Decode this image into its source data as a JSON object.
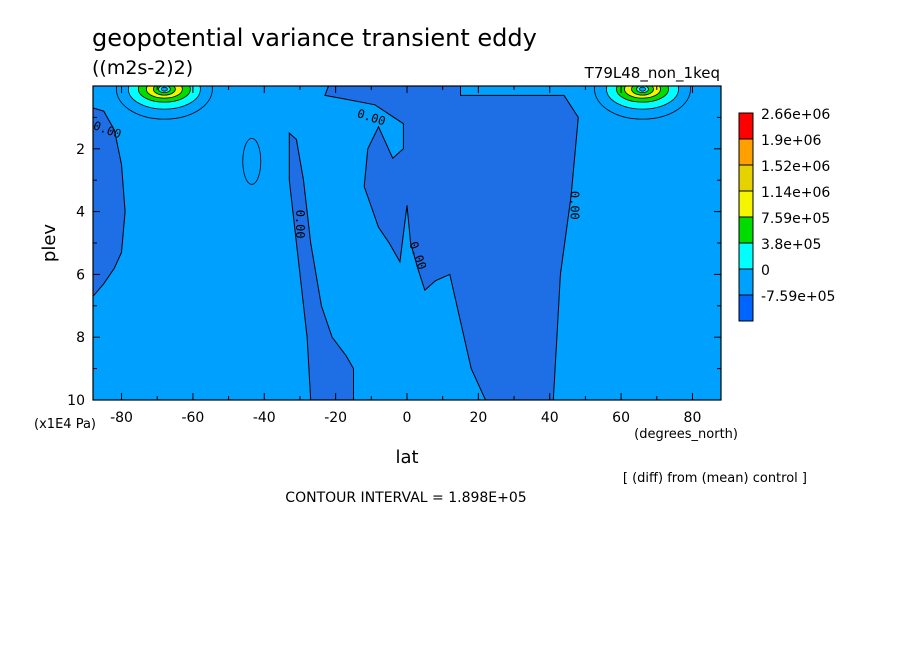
{
  "chart_data": {
    "type": "contour",
    "title": "geopotential variance transient eddy",
    "units": "((m2s-2)2)",
    "run_label": "T79L48_non_1keq",
    "xlabel": "lat",
    "x_units": "(degrees_north)",
    "ylabel": "plev",
    "y_units": "(x1E4 Pa)",
    "xlim": [
      -88,
      88
    ],
    "ylim": [
      10,
      0
    ],
    "x_ticks": [
      -80,
      -60,
      -40,
      -20,
      0,
      20,
      40,
      60,
      80
    ],
    "x_tick_labels": [
      "-80",
      "-60",
      "-40",
      "-20",
      "0",
      "20",
      "40",
      "60",
      "80"
    ],
    "y_ticks": [
      2,
      4,
      6,
      8,
      10
    ],
    "y_tick_labels": [
      "2",
      "4",
      "6",
      "8",
      "10"
    ],
    "contour_labels": [
      "0.00",
      "0.00",
      "0.00",
      "0.00",
      "0.00"
    ],
    "contour_interval_text": "CONTOUR INTERVAL = 1.898E+05",
    "diff_note": "[ (diff) from (mean) control ]",
    "legend": {
      "labels": [
        "2.66e+06",
        "1.9e+06",
        "1.52e+06",
        "1.14e+06",
        "7.59e+05",
        "3.8e+05",
        "0",
        "-7.59e+05"
      ],
      "colors": [
        "#ff0000",
        "#ffa000",
        "#e6d200",
        "#f5f500",
        "#00dc00",
        "#00ffff",
        "#00a0ff",
        "#0064ff"
      ]
    },
    "regions": {
      "negative_color": "#1e6ee6",
      "background_color": "#00a0ff",
      "south_pole_negative": [
        [
          -88,
          0.7
        ],
        [
          -85,
          0.8
        ],
        [
          -82,
          1.4
        ],
        [
          -80,
          2.5
        ],
        [
          -79,
          4.0
        ],
        [
          -80,
          5.3
        ],
        [
          -82,
          5.8
        ],
        [
          -85,
          6.3
        ],
        [
          -88,
          6.7
        ]
      ],
      "sh_midlat_negative": [
        [
          -33,
          1.5
        ],
        [
          -31,
          1.7
        ],
        [
          -29,
          3.0
        ],
        [
          -27,
          5.0
        ],
        [
          -24,
          7.0
        ],
        [
          -21,
          8.0
        ],
        [
          -17,
          8.6
        ],
        [
          -15,
          9.0
        ],
        [
          -15,
          10
        ],
        [
          -27,
          10
        ],
        [
          -28,
          8.0
        ],
        [
          -30,
          6.0
        ],
        [
          -33,
          3.0
        ]
      ],
      "tropical_negative": [
        [
          -22,
          0
        ],
        [
          -23,
          0.3
        ],
        [
          -18,
          0.4
        ],
        [
          -9,
          0.6
        ],
        [
          -1,
          1.2
        ],
        [
          -1,
          2.0
        ],
        [
          -4,
          2.3
        ],
        [
          -8,
          1.3
        ],
        [
          -11,
          2.0
        ],
        [
          -12,
          3.2
        ],
        [
          -8,
          4.5
        ],
        [
          -5,
          5.0
        ],
        [
          -2,
          5.6
        ],
        [
          0,
          3.8
        ],
        [
          1,
          5.0
        ],
        [
          3,
          5.8
        ],
        [
          5,
          6.5
        ],
        [
          8,
          6.2
        ],
        [
          12,
          6.0
        ],
        [
          15,
          7.5
        ],
        [
          18,
          9.0
        ],
        [
          22,
          10
        ],
        [
          41,
          10
        ],
        [
          42,
          8.0
        ],
        [
          43,
          6.0
        ],
        [
          46,
          3.5
        ],
        [
          48,
          1.0
        ],
        [
          44,
          0.3
        ],
        [
          15,
          0.3
        ],
        [
          15,
          0
        ]
      ]
    },
    "top_highs": [
      {
        "lat": -68,
        "plev": 0.1
      },
      {
        "lat": 66,
        "plev": 0.1
      }
    ]
  }
}
